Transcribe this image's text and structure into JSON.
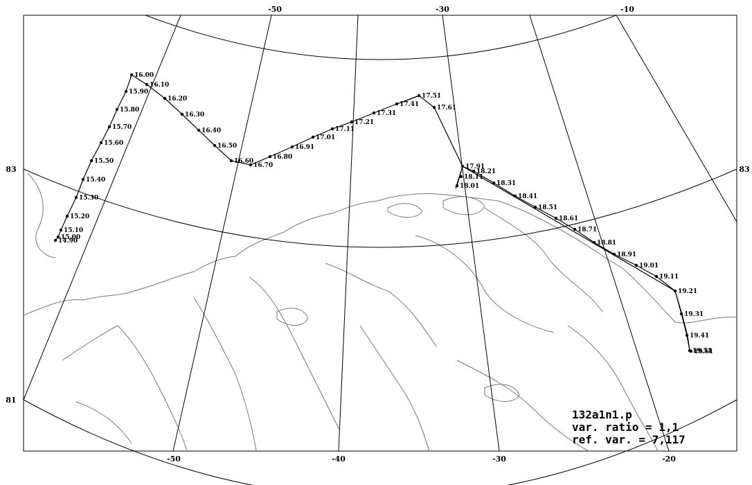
{
  "map": {
    "top_lon_labels": [
      "-50",
      "-30",
      "-10"
    ],
    "bottom_lon_labels": [
      "-50",
      "-40",
      "-30",
      "-20"
    ],
    "left_lat_labels": [
      "83",
      "81"
    ],
    "right_lat_labels": [
      "83"
    ]
  },
  "track": {
    "labels": [
      "16.00",
      "16.10",
      "16.20",
      "16.30",
      "16.40",
      "16.50",
      "16.60",
      "16.70",
      "16.80",
      "16.91",
      "17.01",
      "17.11",
      "17.21",
      "17.31",
      "17.41",
      "17.51",
      "17.61",
      "17.91",
      "18.21",
      "18.31",
      "18.41",
      "18.51",
      "18.61",
      "18.71",
      "18.81",
      "18.91",
      "19.01",
      "19.11",
      "19.21",
      "19.31",
      "19.41",
      "19.51",
      "19.61",
      "15.90",
      "15.80",
      "15.70",
      "15.60",
      "15.50",
      "15.40",
      "15.30",
      "15.20",
      "15.10",
      "15.00",
      "14.90",
      "18.11",
      "18.01"
    ]
  },
  "info_box": {
    "line1": "132a1n1.p",
    "line2": "var. ratio = 1,1",
    "line3": "ref. var.  = 7,117"
  }
}
